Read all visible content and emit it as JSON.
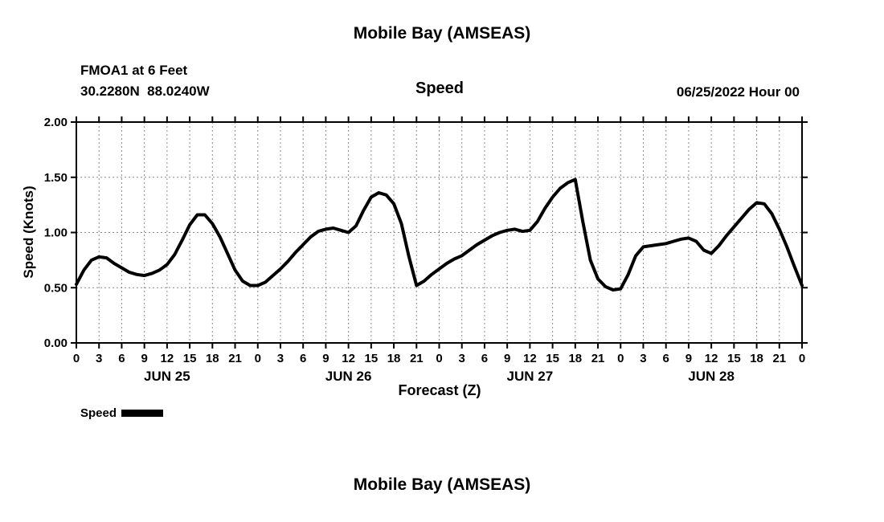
{
  "page": {
    "title_top": "Mobile Bay (AMSEAS)",
    "station_line1": "FMOA1 at 6 Feet",
    "station_line2": "30.2280N  88.0240W",
    "panel_title": "Speed",
    "run_label": "06/25/2022 Hour 00",
    "ylabel": "Speed (Knots)",
    "xlabel": "Forecast (Z)",
    "legend_label": "Speed",
    "title_bottom": "Mobile Bay (AMSEAS)"
  },
  "colors": {
    "line": "#000000",
    "grid": "#8a8a8a",
    "text": "#000000",
    "background": "#ffffff"
  },
  "chart_data": {
    "type": "line",
    "title": "Mobile Bay (AMSEAS)",
    "subtitle": "Speed",
    "station": "FMOA1 at 6 Feet",
    "location": "30.2280N  88.0240W",
    "model_run": "06/25/2022 Hour 00",
    "xlabel": "Forecast (Z)",
    "ylabel": "Speed (Knots)",
    "ylim": [
      0.0,
      2.0
    ],
    "xlim_hours": [
      0,
      96
    ],
    "grid": true,
    "y_ticks": [
      "0.00",
      "0.50",
      "1.00",
      "1.50",
      "2.00"
    ],
    "x_tick_hours": [
      0,
      3,
      6,
      9,
      12,
      15,
      18,
      21,
      24,
      27,
      30,
      33,
      36,
      39,
      42,
      45,
      48,
      51,
      54,
      57,
      60,
      63,
      66,
      69,
      72,
      75,
      78,
      81,
      84,
      87,
      90,
      93,
      96
    ],
    "x_tick_labels": [
      "0",
      "3",
      "6",
      "9",
      "12",
      "15",
      "18",
      "21",
      "0",
      "3",
      "6",
      "9",
      "12",
      "15",
      "18",
      "21",
      "0",
      "3",
      "6",
      "9",
      "12",
      "15",
      "18",
      "21",
      "0",
      "3",
      "6",
      "9",
      "12",
      "15",
      "18",
      "21",
      "0"
    ],
    "day_labels": [
      {
        "label": "JUN 25",
        "hour": 12
      },
      {
        "label": "JUN 26",
        "hour": 36
      },
      {
        "label": "JUN 27",
        "hour": 60
      },
      {
        "label": "JUN 28",
        "hour": 84
      }
    ],
    "legend": {
      "position": "bottom-left",
      "entries": [
        {
          "name": "Speed",
          "color": "#000000"
        }
      ]
    },
    "series": [
      {
        "name": "Speed",
        "color": "#000000",
        "x_hours": [
          0,
          1,
          2,
          3,
          4,
          5,
          6,
          7,
          8,
          9,
          10,
          11,
          12,
          13,
          14,
          15,
          16,
          17,
          18,
          19,
          20,
          21,
          22,
          23,
          24,
          25,
          26,
          27,
          28,
          29,
          30,
          31,
          32,
          33,
          34,
          35,
          36,
          37,
          38,
          39,
          40,
          41,
          42,
          43,
          44,
          45,
          46,
          47,
          48,
          49,
          50,
          51,
          52,
          53,
          54,
          55,
          56,
          57,
          58,
          59,
          60,
          61,
          62,
          63,
          64,
          65,
          66,
          67,
          68,
          69,
          70,
          71,
          72,
          73,
          74,
          75,
          76,
          77,
          78,
          79,
          80,
          81,
          82,
          83,
          84,
          85,
          86,
          87,
          88,
          89,
          90,
          91,
          92,
          93,
          94,
          95,
          96
        ],
        "values": [
          0.53,
          0.66,
          0.75,
          0.78,
          0.77,
          0.72,
          0.68,
          0.64,
          0.62,
          0.61,
          0.63,
          0.66,
          0.71,
          0.8,
          0.93,
          1.07,
          1.16,
          1.16,
          1.08,
          0.96,
          0.81,
          0.66,
          0.56,
          0.52,
          0.52,
          0.55,
          0.61,
          0.67,
          0.74,
          0.82,
          0.89,
          0.96,
          1.01,
          1.03,
          1.04,
          1.02,
          1.0,
          1.06,
          1.2,
          1.32,
          1.36,
          1.34,
          1.26,
          1.08,
          0.78,
          0.52,
          0.56,
          0.62,
          0.67,
          0.72,
          0.76,
          0.79,
          0.84,
          0.89,
          0.93,
          0.97,
          1.0,
          1.02,
          1.03,
          1.01,
          1.02,
          1.1,
          1.22,
          1.32,
          1.4,
          1.45,
          1.48,
          1.1,
          0.75,
          0.58,
          0.51,
          0.48,
          0.49,
          0.62,
          0.79,
          0.87,
          0.88,
          0.89,
          0.9,
          0.92,
          0.94,
          0.95,
          0.92,
          0.84,
          0.81,
          0.88,
          0.97,
          1.05,
          1.13,
          1.21,
          1.27,
          1.26,
          1.17,
          1.03,
          0.87,
          0.69,
          0.52
        ]
      }
    ]
  }
}
